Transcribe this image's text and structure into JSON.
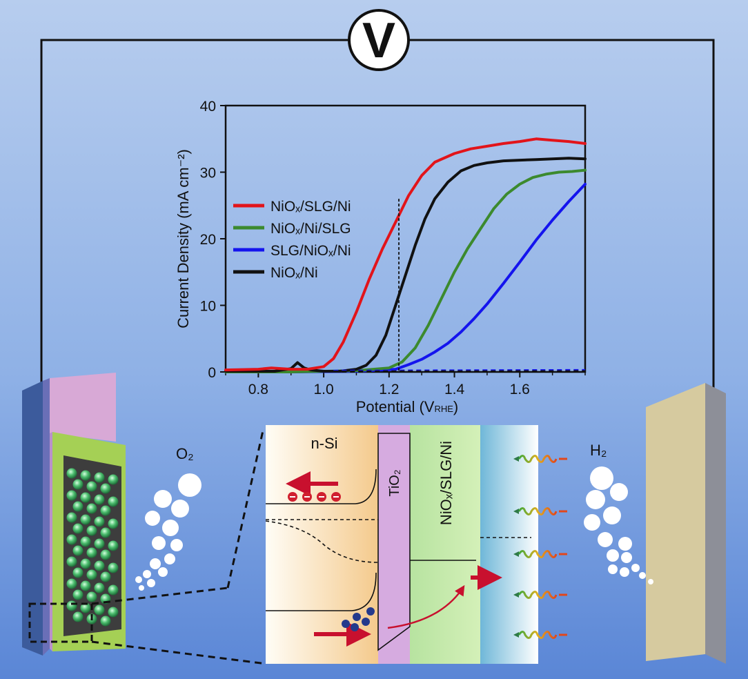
{
  "voltmeter": {
    "symbol": "V"
  },
  "gases": {
    "left": "O₂",
    "right": "H₂"
  },
  "inset": {
    "layer_si": "n-Si",
    "layer_tio2": "TiO₂",
    "layer_catalyst": "NiOₓ/SLG/Ni"
  },
  "chart_data": {
    "type": "line",
    "xlabel_main": "Potential (V",
    "xlabel_sub": "RHE",
    "xlabel_end": ")",
    "ylabel": "Current Density (mA cm⁻²)",
    "xlim": [
      0.7,
      1.8
    ],
    "ylim": [
      0,
      40
    ],
    "xticks": [
      "0.8",
      "1.0",
      "1.2",
      "1.4",
      "1.6"
    ],
    "yticks": [
      "0",
      "10",
      "20",
      "30",
      "40"
    ],
    "legend_position": "left",
    "reference_line_x": 1.23,
    "series": [
      {
        "name": "NiOₓ/SLG/Ni",
        "color": "#e2141a",
        "x": [
          0.7,
          0.8,
          0.84,
          0.9,
          0.95,
          1.0,
          1.03,
          1.06,
          1.1,
          1.14,
          1.18,
          1.22,
          1.26,
          1.3,
          1.34,
          1.4,
          1.45,
          1.5,
          1.55,
          1.6,
          1.65,
          1.7,
          1.75,
          1.8
        ],
        "y": [
          0.3,
          0.4,
          0.6,
          0.4,
          0.4,
          0.8,
          2,
          4.5,
          9,
          14,
          18.5,
          22.5,
          26.5,
          29.5,
          31.5,
          32.8,
          33.5,
          33.9,
          34.3,
          34.6,
          35,
          34.8,
          34.6,
          34.3
        ]
      },
      {
        "name": "NiOₓ/Ni/SLG",
        "color": "#3c8a2e",
        "x": [
          0.7,
          0.9,
          1.1,
          1.2,
          1.24,
          1.28,
          1.32,
          1.36,
          1.4,
          1.44,
          1.48,
          1.52,
          1.56,
          1.6,
          1.64,
          1.68,
          1.72,
          1.76,
          1.8
        ],
        "y": [
          0,
          0,
          0.2,
          0.6,
          1.5,
          3.6,
          7,
          11,
          15,
          18.5,
          21.5,
          24.5,
          26.7,
          28.2,
          29.2,
          29.7,
          30,
          30.1,
          30.3
        ]
      },
      {
        "name": "SLG/NiOₓ/Ni",
        "color": "#1414ee",
        "x": [
          0.7,
          0.9,
          1.1,
          1.22,
          1.26,
          1.3,
          1.34,
          1.38,
          1.42,
          1.46,
          1.5,
          1.55,
          1.6,
          1.65,
          1.7,
          1.75,
          1.8
        ],
        "y": [
          0,
          0,
          0.1,
          0.4,
          1.1,
          1.9,
          3,
          4.3,
          6,
          8,
          10.2,
          13.3,
          16.5,
          19.8,
          22.8,
          25.6,
          28.2
        ]
      },
      {
        "name": "NiOₓ/Ni",
        "color": "#111111",
        "x": [
          0.7,
          0.85,
          0.9,
          0.92,
          0.94,
          0.96,
          1.0,
          1.05,
          1.1,
          1.13,
          1.16,
          1.19,
          1.22,
          1.25,
          1.28,
          1.31,
          1.34,
          1.38,
          1.42,
          1.46,
          1.5,
          1.55,
          1.6,
          1.65,
          1.7,
          1.75,
          1.8
        ],
        "y": [
          0.1,
          0.1,
          0.5,
          1.4,
          0.6,
          0.3,
          0.1,
          0.1,
          0.4,
          1,
          2.5,
          5.5,
          10,
          14.5,
          19,
          23,
          26,
          28.5,
          30.2,
          31,
          31.4,
          31.7,
          31.8,
          31.9,
          32,
          32.1,
          32
        ]
      }
    ]
  }
}
